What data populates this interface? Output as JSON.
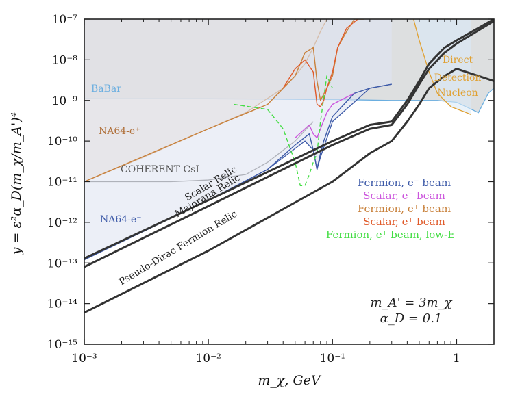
{
  "figure": {
    "xlabel": "m_χ, GeV",
    "ylabel": "y = ε²α_D(m_χ/m_A')⁴",
    "params": [
      "m_A' = 3m_χ",
      "α_D = 0.1"
    ]
  },
  "chart_data": {
    "type": "line",
    "xscale": "log",
    "yscale": "log",
    "xlim": [
      0.001,
      2.0
    ],
    "ylim": [
      1e-15,
      1e-07
    ],
    "xlabel": "m_χ, GeV",
    "ylabel": "y = ε²α_D(m_χ/m_A')⁴",
    "x_ticks": [
      {
        "value": 0.001,
        "label": "10⁻³"
      },
      {
        "value": 0.01,
        "label": "10⁻²"
      },
      {
        "value": 0.1,
        "label": "10⁻¹"
      },
      {
        "value": 1,
        "label": "1"
      }
    ],
    "y_ticks": [
      {
        "value": 1e-15,
        "label": "10⁻¹⁵"
      },
      {
        "value": 1e-14,
        "label": "10⁻¹⁴"
      },
      {
        "value": 1e-13,
        "label": "10⁻¹³"
      },
      {
        "value": 1e-12,
        "label": "10⁻¹²"
      },
      {
        "value": 1e-11,
        "label": "10⁻¹¹"
      },
      {
        "value": 1e-10,
        "label": "10⁻¹⁰"
      },
      {
        "value": 1e-09,
        "label": "10⁻⁹"
      },
      {
        "value": 1e-08,
        "label": "10⁻⁸"
      },
      {
        "value": 1e-07,
        "label": "10⁻⁷"
      }
    ],
    "excluded_regions": [
      {
        "name": "BaBar",
        "label": "BaBar",
        "color": "#6aaee0",
        "fill": "#c7c9cc",
        "boundary": [
          [
            0.001,
            1.1e-09
          ],
          [
            0.01,
            1.1e-09
          ],
          [
            0.1,
            1.05e-09
          ],
          [
            0.3,
            1e-09
          ],
          [
            0.7,
            1e-09
          ],
          [
            1.0,
            9e-10
          ],
          [
            1.5,
            5e-10
          ],
          [
            1.8,
            1.5e-09
          ],
          [
            2.0,
            2e-09
          ]
        ]
      },
      {
        "name": "NA64-e+",
        "label": "NA64-e⁺",
        "color": "#c8803a",
        "fill": "#ead8c8",
        "boundary": [
          [
            0.001,
            1e-11
          ],
          [
            0.003,
            4e-11
          ],
          [
            0.01,
            2e-10
          ],
          [
            0.02,
            5e-10
          ],
          [
            0.04,
            2e-09
          ],
          [
            0.05,
            4e-09
          ],
          [
            0.06,
            8e-09
          ],
          [
            0.07,
            2e-08
          ],
          [
            0.08,
            5e-08
          ],
          [
            0.09,
            1e-07
          ]
        ]
      },
      {
        "name": "COHERENT CsI",
        "label": "COHERENT CsI",
        "color": "#666666",
        "fill": "none",
        "boundary": [
          [
            0.001,
            1e-11
          ],
          [
            0.005,
            1e-11
          ],
          [
            0.01,
            1.1e-11
          ],
          [
            0.02,
            1.5e-11
          ],
          [
            0.03,
            3e-11
          ],
          [
            0.05,
            1e-10
          ],
          [
            0.07,
            3e-10
          ]
        ]
      },
      {
        "name": "NA64-e-",
        "label": "NA64-e⁻",
        "color": "#3d5aa8",
        "fill": "#dfe4f2",
        "boundary": [
          [
            0.001,
            1.2e-13
          ],
          [
            0.01,
            3.5e-12
          ],
          [
            0.03,
            2e-11
          ],
          [
            0.06,
            1e-10
          ],
          [
            0.07,
            6e-11
          ],
          [
            0.075,
            2e-11
          ],
          [
            0.08,
            4e-11
          ],
          [
            0.1,
            3e-10
          ],
          [
            0.2,
            2e-09
          ],
          [
            0.3,
            2.5e-09
          ]
        ]
      },
      {
        "name": "Direct Detection Nucleon",
        "label": [
          "Direct",
          "Detection",
          "Nucleon"
        ],
        "color": "#e0a030",
        "fill": "#dbeaf6",
        "boundary": [
          [
            0.45,
            1e-07
          ],
          [
            0.5,
            3e-08
          ],
          [
            0.6,
            5e-09
          ],
          [
            0.7,
            1.5e-09
          ],
          [
            0.9,
            7e-10
          ],
          [
            1.2,
            5e-10
          ],
          [
            1.3,
            4.5e-10
          ]
        ]
      }
    ],
    "series": [
      {
        "name": "Fermion, e⁻ beam",
        "color": "#3d5aa8",
        "style": "solid",
        "x": [
          0.001,
          0.01,
          0.03,
          0.05,
          0.065,
          0.07,
          0.075,
          0.08,
          0.085,
          0.1,
          0.15,
          0.2,
          0.3
        ],
        "y": [
          1.2e-13,
          3.5e-12,
          2e-11,
          8e-11,
          1.5e-10,
          6e-11,
          2e-11,
          5e-11,
          1e-10,
          4e-10,
          1.5e-09,
          2e-09,
          2.5e-09
        ]
      },
      {
        "name": "Scalar, e⁻ beam",
        "color": "#cc55dd",
        "style": "solid",
        "x": [
          0.05,
          0.06,
          0.065,
          0.07,
          0.075,
          0.08,
          0.09,
          0.1,
          0.15
        ],
        "y": [
          1.2e-10,
          2e-10,
          2.5e-10,
          1.5e-10,
          1.2e-10,
          2e-10,
          5e-10,
          8e-10,
          1.5e-09
        ]
      },
      {
        "name": "Fermion, e⁺ beam",
        "color": "#c8803a",
        "style": "solid",
        "x": [
          0.001,
          0.01,
          0.03,
          0.05,
          0.06,
          0.07,
          0.075,
          0.08,
          0.09,
          0.1,
          0.11,
          0.13,
          0.15,
          0.18
        ],
        "y": [
          1e-11,
          2e-10,
          8e-10,
          4e-09,
          1.5e-08,
          2e-08,
          3e-09,
          1e-09,
          2e-09,
          4e-09,
          2e-08,
          5e-08,
          1e-07,
          1e-07
        ]
      },
      {
        "name": "Scalar, e⁺ beam",
        "color": "#e05a2a",
        "style": "solid",
        "x": [
          0.04,
          0.05,
          0.06,
          0.07,
          0.075,
          0.08,
          0.085,
          0.09,
          0.1,
          0.11,
          0.13,
          0.16
        ],
        "y": [
          2e-09,
          6e-09,
          1e-08,
          5e-09,
          8e-10,
          7e-10,
          1e-09,
          2e-09,
          5e-09,
          2e-08,
          6e-08,
          1e-07
        ]
      },
      {
        "name": "Fermion, e⁺ beam, low-E",
        "color": "#44dd44",
        "style": "dashed",
        "x": [
          0.016,
          0.03,
          0.04,
          0.05,
          0.055,
          0.06,
          0.065,
          0.07,
          0.075,
          0.08,
          0.09,
          0.1
        ],
        "y": [
          8e-10,
          6e-10,
          2e-10,
          3e-11,
          8e-12,
          8e-12,
          1.5e-11,
          3e-11,
          5e-11,
          3e-10,
          4e-09,
          2e-09
        ]
      },
      {
        "name": "Scalar Relic",
        "color": "#333333",
        "style": "solid-thick",
        "x": [
          0.001,
          0.01,
          0.1,
          0.2,
          0.3,
          0.4,
          0.5,
          0.6,
          0.8,
          1.0,
          2.0
        ],
        "y": [
          1.3e-13,
          3.5e-12,
          1e-10,
          2.5e-10,
          3e-10,
          1e-09,
          3e-09,
          8e-09,
          2e-08,
          3e-08,
          1e-07
        ]
      },
      {
        "name": "Majorana Relic",
        "color": "#333333",
        "style": "solid-thick",
        "x": [
          0.001,
          0.01,
          0.1,
          0.2,
          0.3,
          0.4,
          0.5,
          0.6,
          0.8,
          1.0,
          2.0
        ],
        "y": [
          8e-14,
          2.5e-12,
          8e-11,
          2e-10,
          2.5e-10,
          8e-10,
          2.5e-09,
          6e-09,
          1.5e-08,
          2.5e-08,
          9e-08
        ]
      },
      {
        "name": "Pseudo-Dirac Fermion Relic",
        "color": "#333333",
        "style": "solid-thick",
        "x": [
          0.001,
          0.01,
          0.1,
          0.2,
          0.3,
          0.4,
          0.5,
          0.6,
          0.8,
          1.0,
          2.0
        ],
        "y": [
          6e-15,
          2e-13,
          1e-11,
          5e-11,
          1e-10,
          3e-10,
          8e-10,
          2e-09,
          4e-09,
          6e-09,
          3e-09
        ]
      }
    ],
    "legend": {
      "placement": "center-right",
      "entries": [
        {
          "label": "Fermion, e⁻ beam",
          "color": "#3d5aa8"
        },
        {
          "label": "Scalar, e⁻ beam",
          "color": "#cc55dd"
        },
        {
          "label": "Fermion, e⁺ beam",
          "color": "#c8803a"
        },
        {
          "label": "Scalar, e⁺ beam",
          "color": "#e05a2a"
        },
        {
          "label": "Fermion, e⁺ beam, low-E",
          "color": "#44dd44"
        }
      ]
    },
    "curve_labels": [
      {
        "text": "Scalar Relic"
      },
      {
        "text": "Majorana Relic"
      },
      {
        "text": "Pseudo-Dirac Fermion Relic"
      }
    ]
  }
}
